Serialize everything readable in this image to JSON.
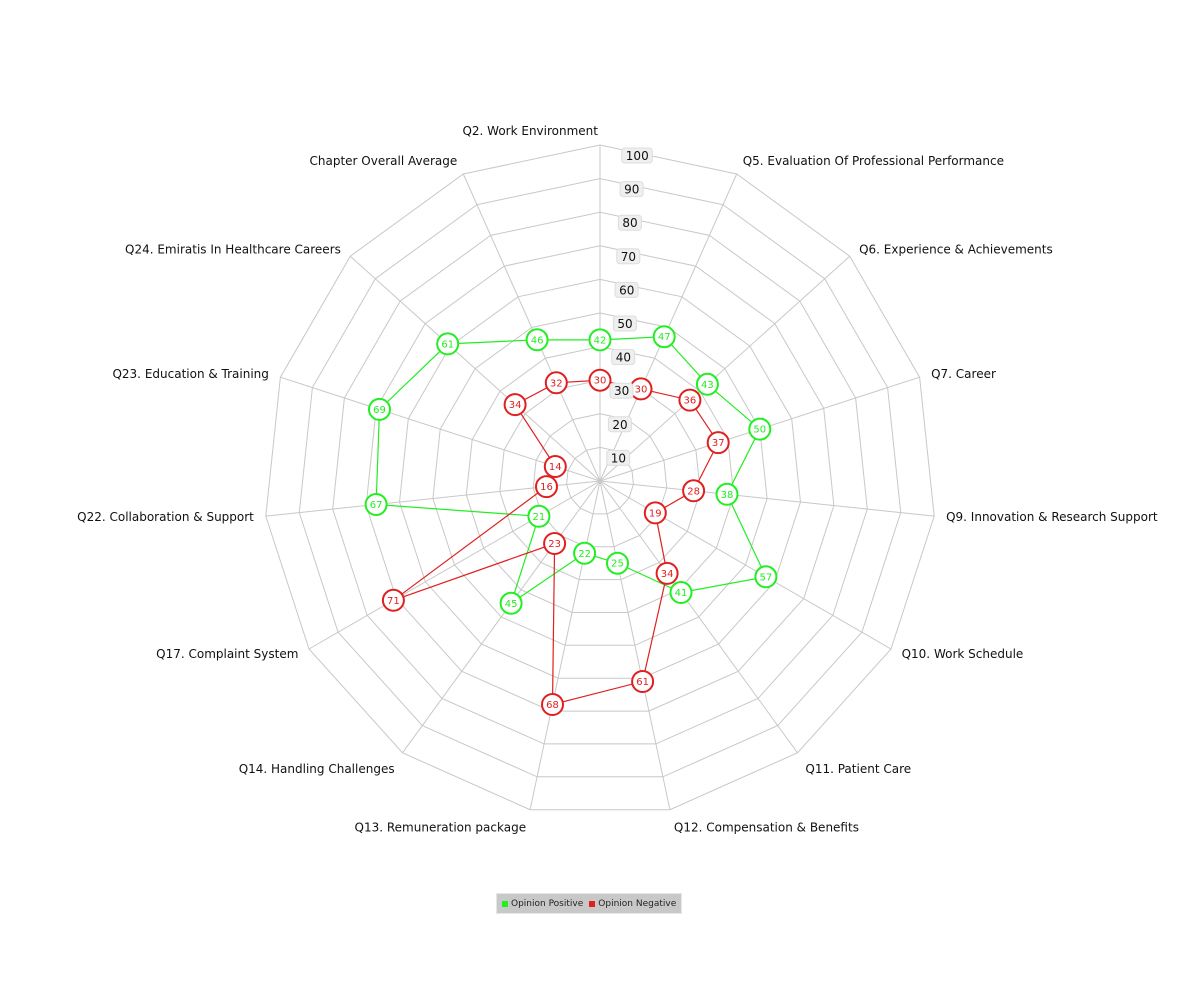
{
  "chart_data": {
    "type": "radar",
    "axes": [
      "Q2. Work Environment",
      "Q5. Evaluation Of Professional Performance",
      "Q6. Experience & Achievements",
      "Q7. Career",
      "Q9. Innovation & Research Support",
      "Q10. Work Schedule",
      "Q11. Patient Care",
      "Q12. Compensation & Benefits",
      "Q13. Remuneration package",
      "Q14. Handling Challenges",
      "Q17. Complaint System",
      "Q22. Collaboration & Support",
      "Q23. Education & Training",
      "Q24. Emiratis In Healthcare Careers",
      "Chapter Overall Average"
    ],
    "r_ticks": [
      "10",
      "20",
      "30",
      "40",
      "50",
      "60",
      "70",
      "80",
      "90",
      "100"
    ],
    "r_range": [
      0,
      100
    ],
    "grid": true,
    "legend_position": "bottom",
    "series": [
      {
        "name": "Opinion Positive",
        "color": "#22ee22",
        "values": [
          42,
          47,
          43,
          50,
          38,
          57,
          41,
          25,
          22,
          45,
          21,
          67,
          69,
          61,
          46
        ]
      },
      {
        "name": "Opinion Negative",
        "color": "#e02020",
        "values": [
          30,
          30,
          36,
          37,
          28,
          19,
          34,
          61,
          68,
          23,
          71,
          16,
          14,
          34,
          32
        ]
      }
    ]
  }
}
